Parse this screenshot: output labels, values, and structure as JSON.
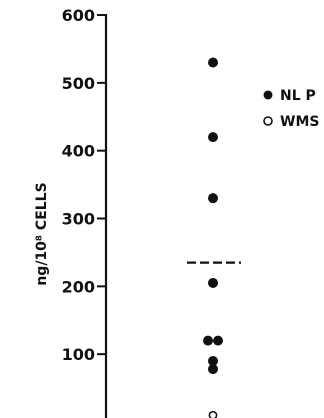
{
  "chart_data": {
    "type": "scatter",
    "title": "",
    "ylabel": "ng/10⁸ CELLS",
    "ylim": [
      0,
      600
    ],
    "yticks": [
      100,
      200,
      300,
      400,
      500,
      600
    ],
    "ytick_labels": [
      "100",
      "200",
      "300",
      "400",
      "500",
      "600"
    ],
    "grid": false,
    "legend_placement": "top-right",
    "series": [
      {
        "name": "NL P",
        "marker": "filled-circle",
        "color": "#111111",
        "values": [
          530,
          420,
          330,
          205,
          120,
          120,
          90,
          78
        ]
      },
      {
        "name": "WMS",
        "marker": "open-circle",
        "color": "#111111",
        "values": [
          10
        ]
      }
    ],
    "reference_lines": [
      {
        "style": "dashed",
        "series": "NL P",
        "value": 235
      }
    ]
  }
}
